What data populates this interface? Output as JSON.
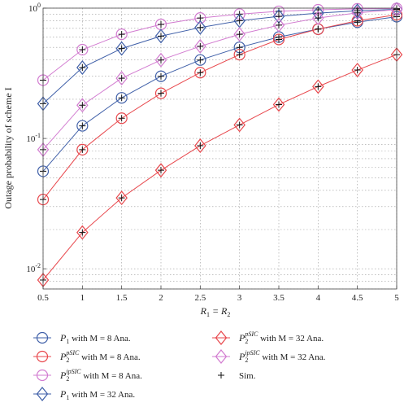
{
  "chart_data": {
    "type": "line",
    "xlabel_main": "R",
    "xlabel_sub1": "1",
    "xlabel_eq": " = R",
    "xlabel_sub2": "2",
    "ylabel": "Outage probability of scheme I",
    "xlim": [
      0.5,
      5
    ],
    "ylim": [
      0.007,
      1
    ],
    "y_scale": "log",
    "grid": true,
    "x_ticks": [
      "0.5",
      "1",
      "1.5",
      "2",
      "2.5",
      "3",
      "3.5",
      "4",
      "4.5",
      "5"
    ],
    "y_ticks": [
      {
        "base": "10",
        "exp": "0"
      },
      {
        "base": "10",
        "exp": "-1"
      },
      {
        "base": "10",
        "exp": "-2"
      }
    ],
    "x": [
      0.5,
      1,
      1.5,
      2,
      2.5,
      3,
      3.5,
      4,
      4.5,
      5
    ],
    "series": [
      {
        "name": "P1 with M = 8 Ana.",
        "color": "#3f5fa8",
        "marker": "circle",
        "values": [
          0.056,
          0.125,
          0.205,
          0.3,
          0.4,
          0.5,
          0.6,
          0.69,
          0.78,
          0.86
        ]
      },
      {
        "name": "P2pSIC with M = 8 Ana.",
        "color": "#e8474c",
        "marker": "circle",
        "values": [
          0.034,
          0.082,
          0.143,
          0.222,
          0.32,
          0.44,
          0.575,
          0.69,
          0.8,
          0.89
        ]
      },
      {
        "name": "P2ipSIC with M = 8 Ana.",
        "color": "#d27bd0",
        "marker": "circle",
        "values": [
          0.28,
          0.48,
          0.63,
          0.75,
          0.84,
          0.9,
          0.945,
          0.972,
          0.987,
          0.995
        ]
      },
      {
        "name": "P1 with M = 32 Ana.",
        "color": "#3f5fa8",
        "marker": "diamond",
        "values": [
          0.185,
          0.35,
          0.49,
          0.61,
          0.71,
          0.8,
          0.865,
          0.915,
          0.955,
          0.98
        ]
      },
      {
        "name": "P2pSIC with M = 32 Ana.",
        "color": "#e8474c",
        "marker": "diamond",
        "values": [
          0.0082,
          0.019,
          0.035,
          0.057,
          0.088,
          0.127,
          0.182,
          0.25,
          0.335,
          0.44
        ]
      },
      {
        "name": "P2ipSIC with M = 32 Ana.",
        "color": "#d27bd0",
        "marker": "diamond",
        "values": [
          0.082,
          0.18,
          0.29,
          0.4,
          0.51,
          0.63,
          0.74,
          0.84,
          0.92,
          0.975
        ]
      }
    ]
  },
  "legend": {
    "placement": "bottom",
    "entries": [
      {
        "sym": "P",
        "sub": "1",
        "sup": "",
        "rest": " with M = 8 Ana.",
        "color": "#3f5fa8",
        "marker": "circle"
      },
      {
        "sym": "P",
        "sub": "2",
        "sup": "pSIC",
        "rest": " with M = 8 Ana.",
        "color": "#e8474c",
        "marker": "circle"
      },
      {
        "sym": "P",
        "sub": "2",
        "sup": "ipSIC",
        "rest": " with M = 8 Ana.",
        "color": "#d27bd0",
        "marker": "circle"
      },
      {
        "sym": "P",
        "sub": "1",
        "sup": "",
        "rest": " with M = 32 Ana.",
        "color": "#3f5fa8",
        "marker": "diamond"
      },
      {
        "sym": "P",
        "sub": "2",
        "sup": "pSIC",
        "rest": " with M = 32 Ana.",
        "color": "#e8474c",
        "marker": "diamond"
      },
      {
        "sym": "P",
        "sub": "2",
        "sup": "ipSIC",
        "rest": " with M = 32 Ana.",
        "color": "#d27bd0",
        "marker": "diamond"
      },
      {
        "sym": "",
        "sub": "",
        "sup": "",
        "rest": "Sim.",
        "color": "#111111",
        "marker": "plus"
      }
    ]
  }
}
